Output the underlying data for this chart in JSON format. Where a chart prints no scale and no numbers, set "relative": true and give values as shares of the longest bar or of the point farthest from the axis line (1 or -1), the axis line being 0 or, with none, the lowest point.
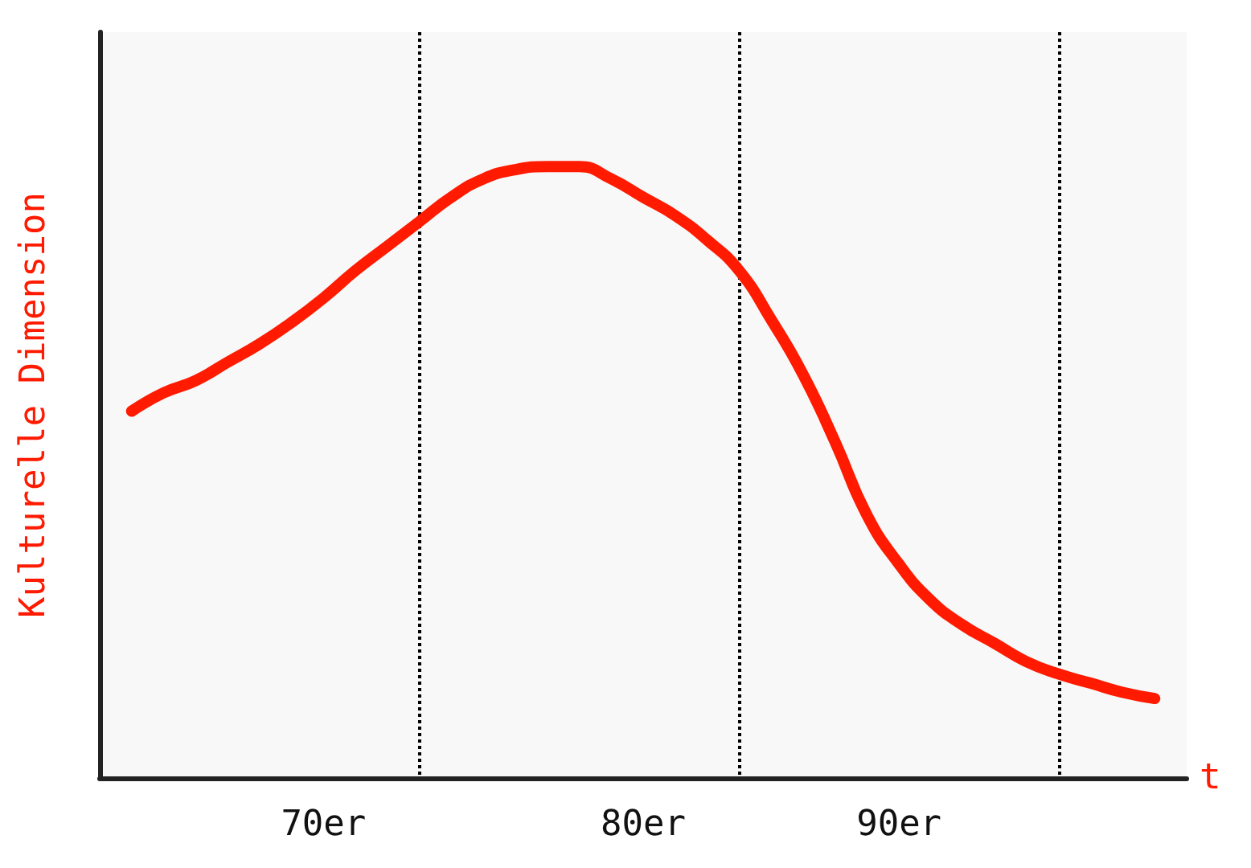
{
  "chart_data": {
    "type": "line",
    "relative": true,
    "xlabel": "t",
    "ylabel": "Kulturelle Dimension",
    "categories": [
      null,
      null,
      null,
      null,
      null,
      null,
      null,
      "70er",
      null,
      null,
      null,
      null,
      null,
      null,
      null,
      null,
      null,
      "80er",
      null,
      null,
      null,
      null,
      null,
      null,
      null,
      "90er",
      null,
      null,
      null,
      null,
      null,
      null,
      null,
      null,
      null
    ],
    "series": [
      {
        "color": "#ff1a00",
        "values": [
          null,
          0.6,
          0.63,
          0.65,
          0.68,
          0.71,
          0.745,
          0.785,
          0.83,
          0.87,
          0.91,
          0.95,
          0.98,
          0.995,
          1,
          1,
          0.98,
          0.95,
          0.92,
          0.88,
          0.83,
          0.75,
          0.66,
          0.55,
          0.43,
          0.35,
          0.29,
          0.25,
          0.22,
          0.19,
          0.17,
          0.155,
          0.14,
          0.13,
          null
        ]
      }
    ],
    "tick_labels": "x",
    "grid": "x",
    "line_style": "solid"
  }
}
